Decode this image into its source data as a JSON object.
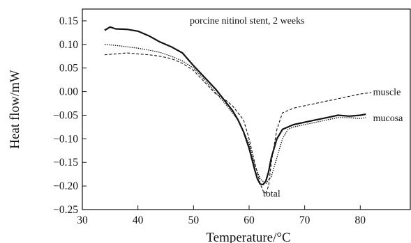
{
  "chart_data": {
    "type": "line",
    "title": "porcine nitinol stent, 2 weeks",
    "xlabel": "Temperature/°C",
    "ylabel": "Heat flow/mW",
    "xlim": [
      30,
      89
    ],
    "ylim": [
      -0.25,
      0.175
    ],
    "xticks": [
      30,
      40,
      50,
      60,
      70,
      80
    ],
    "yticks": [
      0.15,
      0.1,
      0.05,
      0.0,
      -0.05,
      -0.1,
      -0.15,
      -0.2,
      -0.25
    ],
    "ytick_labels": [
      "0.15",
      "0.10",
      "0.05",
      "0.00",
      "−0.05",
      "−0.10",
      "−0.15",
      "−0.20",
      "−0.25"
    ],
    "grid": false,
    "legend": "none",
    "series": [
      {
        "name": "total",
        "style": "solid-thick",
        "x": [
          34,
          35,
          36,
          38,
          40,
          42,
          44,
          46,
          48,
          50,
          52,
          54,
          56,
          57,
          58,
          59,
          60,
          61,
          61.5,
          62,
          62.5,
          63,
          63.5,
          64,
          65,
          66,
          67,
          68,
          70,
          72,
          74,
          76,
          78,
          80,
          81
        ],
        "y": [
          0.13,
          0.137,
          0.133,
          0.132,
          0.128,
          0.118,
          0.105,
          0.095,
          0.082,
          0.055,
          0.03,
          0.005,
          -0.025,
          -0.04,
          -0.06,
          -0.085,
          -0.12,
          -0.165,
          -0.185,
          -0.196,
          -0.197,
          -0.19,
          -0.17,
          -0.14,
          -0.1,
          -0.08,
          -0.075,
          -0.07,
          -0.065,
          -0.06,
          -0.055,
          -0.05,
          -0.052,
          -0.05,
          -0.048
        ]
      },
      {
        "name": "mucosa",
        "style": "dotted",
        "x": [
          34,
          36,
          38,
          40,
          42,
          44,
          46,
          48,
          50,
          52,
          54,
          56,
          58,
          60,
          61,
          62,
          63,
          64,
          65,
          66,
          67,
          68,
          70,
          72,
          74,
          76,
          78,
          80,
          81
        ],
        "y": [
          0.1,
          0.098,
          0.095,
          0.092,
          0.088,
          0.083,
          0.075,
          0.065,
          0.05,
          0.025,
          -0.002,
          -0.03,
          -0.06,
          -0.11,
          -0.155,
          -0.185,
          -0.195,
          -0.18,
          -0.14,
          -0.1,
          -0.08,
          -0.075,
          -0.07,
          -0.065,
          -0.06,
          -0.055,
          -0.055,
          -0.057,
          -0.055
        ]
      },
      {
        "name": "muscle",
        "style": "dashed",
        "x": [
          34,
          36,
          38,
          40,
          42,
          44,
          46,
          48,
          50,
          52,
          54,
          56,
          57,
          58,
          59,
          60,
          61,
          62,
          62.5,
          63,
          63.5,
          64,
          65,
          66,
          68,
          70,
          72,
          74,
          76,
          78,
          80,
          82
        ],
        "y": [
          0.078,
          0.08,
          0.082,
          0.08,
          0.078,
          0.075,
          0.07,
          0.06,
          0.045,
          0.02,
          -0.005,
          -0.02,
          -0.03,
          -0.045,
          -0.06,
          -0.1,
          -0.15,
          -0.195,
          -0.21,
          -0.215,
          -0.2,
          -0.15,
          -0.08,
          -0.045,
          -0.035,
          -0.03,
          -0.025,
          -0.02,
          -0.015,
          -0.01,
          -0.005,
          -0.002
        ]
      }
    ],
    "annotations": [
      {
        "text": "muscle",
        "x": 82.3,
        "y": 0.0
      },
      {
        "text": "mucosa",
        "x": 82.3,
        "y": -0.055
      },
      {
        "text": "total",
        "x": 62.5,
        "y": -0.215
      }
    ]
  }
}
